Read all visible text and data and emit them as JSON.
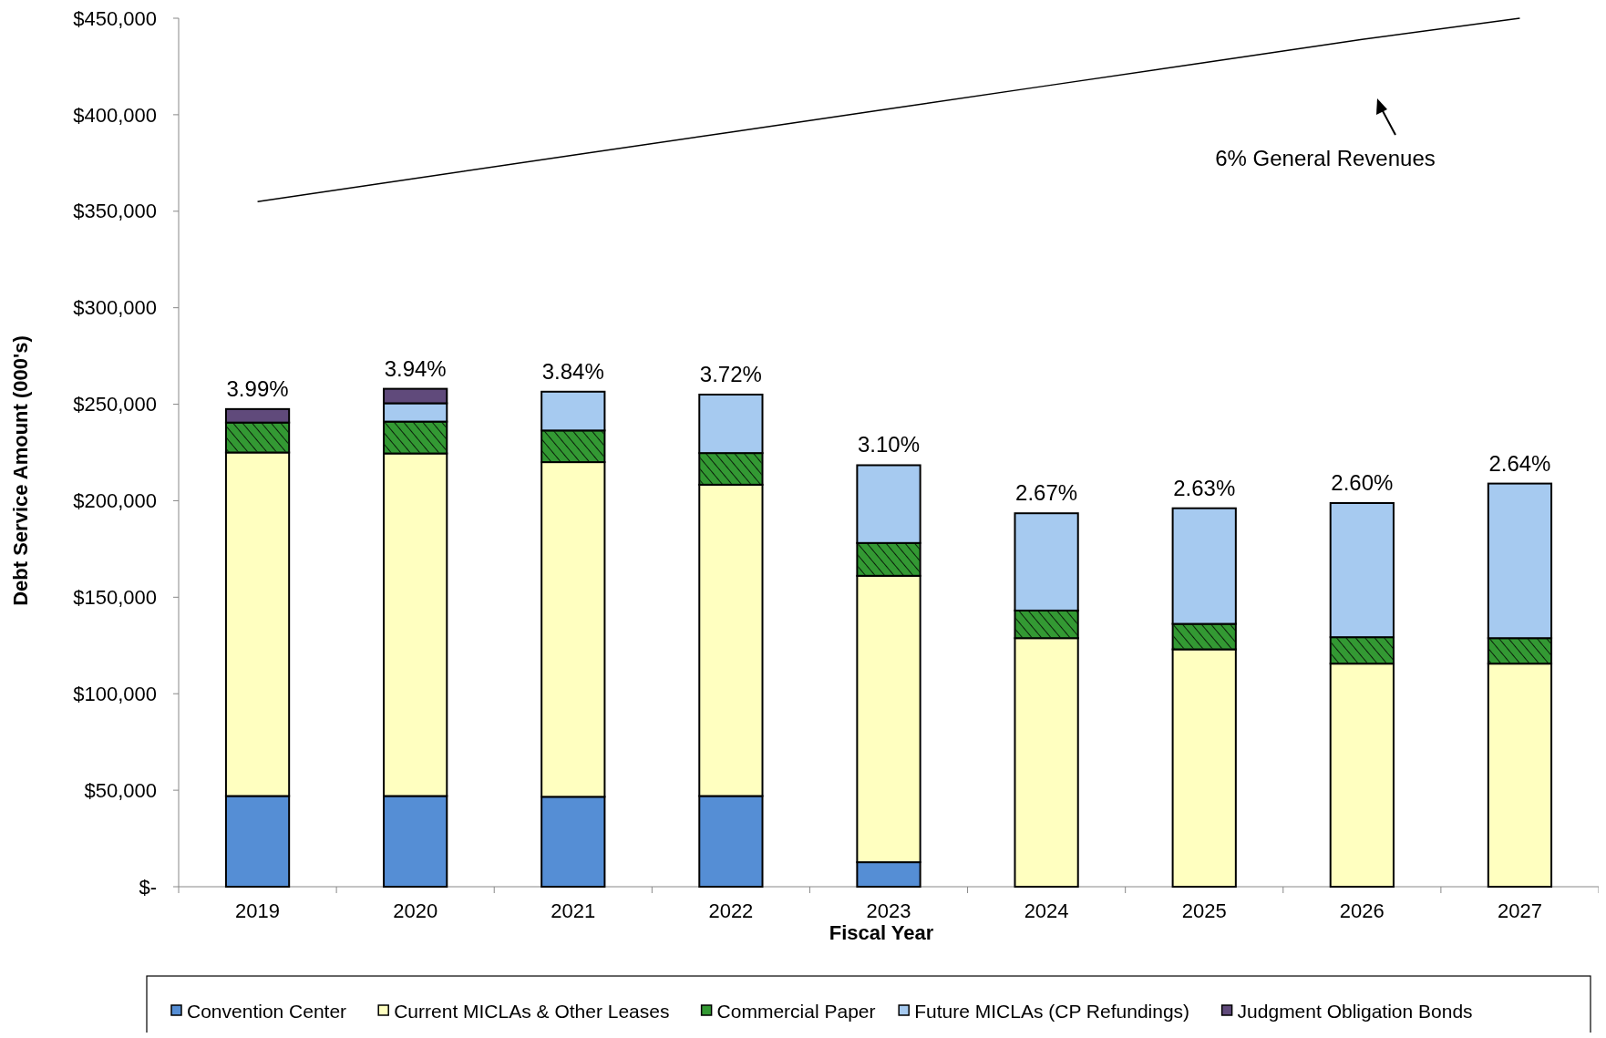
{
  "chart_data": {
    "type": "bar",
    "stacked": true,
    "xlabel": "Fiscal Year",
    "ylabel": "Debt Service Amount (000's)",
    "categories": [
      "2019",
      "2020",
      "2021",
      "2022",
      "2023",
      "2024",
      "2025",
      "2026",
      "2027"
    ],
    "series": [
      {
        "name": "Convention Center",
        "color": "#558ed5",
        "values": [
          47000,
          47000,
          46600,
          47000,
          12700,
          0,
          0,
          0,
          0
        ]
      },
      {
        "name": "Current MICLAs & Other Leases",
        "color": "#ffffc0",
        "values": [
          178000,
          177500,
          173400,
          161300,
          148400,
          128800,
          123000,
          115600,
          115600
        ]
      },
      {
        "name": "Commercial Paper",
        "color": "#339933",
        "values": [
          15500,
          16500,
          16400,
          16400,
          17000,
          14300,
          13200,
          13700,
          13200
        ]
      },
      {
        "name": "Future MICLAs (CP Refundings)",
        "color": "#a6caf0",
        "values": [
          0,
          9500,
          20100,
          30300,
          40300,
          50400,
          59900,
          69500,
          80100
        ]
      },
      {
        "name": "Judgment Obligation Bonds",
        "color": "#604a7b",
        "values": [
          7000,
          7500,
          0,
          0,
          0,
          0,
          0,
          0,
          0
        ]
      },
      {
        "type": "line",
        "color": "#000000",
        "values": [
          355000,
          367000,
          379000,
          391000,
          403000,
          415000,
          427000,
          439000,
          450000
        ]
      }
    ],
    "annotations": [
      "6% General Revenues",
      {
        "text": "3.99%",
        "x": "2019",
        "y": 247500
      },
      {
        "text": "3.94%",
        "x": "2020",
        "y": 258000
      },
      {
        "text": "3.84%",
        "x": "2021",
        "y": 256500
      },
      {
        "text": "3.72%",
        "x": "2022",
        "y": 255000
      },
      {
        "text": "3.10%",
        "x": "2023",
        "y": 218400
      },
      {
        "text": "2.67%",
        "x": "2024",
        "y": 193500
      },
      {
        "text": "2.63%",
        "x": "2025",
        "y": 196100
      },
      {
        "text": "2.60%",
        "x": "2026",
        "y": 198800
      },
      {
        "text": "2.64%",
        "x": "2027",
        "y": 208900
      }
    ],
    "ylim": [
      0,
      450000
    ],
    "yticks": [
      {
        "value": 0,
        "label": "$-"
      },
      {
        "value": 50000,
        "label": "$50,000"
      },
      {
        "value": 100000,
        "label": "$100,000"
      },
      {
        "value": 150000,
        "label": "$150,000"
      },
      {
        "value": 200000,
        "label": "$200,000"
      },
      {
        "value": 250000,
        "label": "$250,000"
      },
      {
        "value": 300000,
        "label": "$300,000"
      },
      {
        "value": 350000,
        "label": "$350,000"
      },
      {
        "value": 400000,
        "label": "$400,000"
      },
      {
        "value": 450000,
        "label": "$450,000"
      }
    ],
    "legend": "bottom"
  }
}
